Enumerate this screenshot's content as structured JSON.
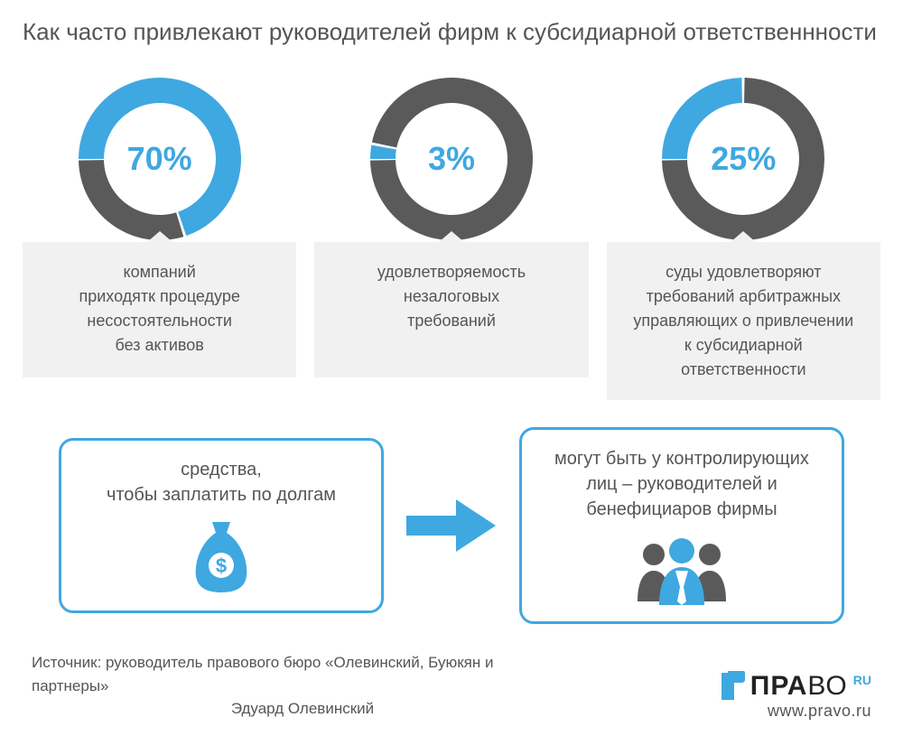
{
  "title": "Как часто привлекают руководителей фирм к субсидиарной ответственнности",
  "colors": {
    "accent": "#3fa8e0",
    "grey": "#5a5a5a",
    "boxBg": "#f1f1f1",
    "textGrey": "#555555",
    "white": "#ffffff"
  },
  "donuts": [
    {
      "percent": 70,
      "label": "70%",
      "desc": "компаний\nприходятк процедуре\nнесостоятельности\nбез активов",
      "ring_width": 28,
      "size": 200,
      "accent_color": "#3fa8e0",
      "grey_color": "#5a5a5a",
      "label_color": "#3fa8e0"
    },
    {
      "percent": 3,
      "label": "3%",
      "desc": "удовлетворяемость\nнезалоговых\nтребований",
      "ring_width": 28,
      "size": 200,
      "accent_color": "#3fa8e0",
      "grey_color": "#5a5a5a",
      "label_color": "#3fa8e0"
    },
    {
      "percent": 25,
      "label": "25%",
      "desc": "суды удовлетворяют\nтребований арбитражных\nуправляющих о привлечении\nк субсидиарной ответственности",
      "ring_width": 28,
      "size": 200,
      "accent_color": "#3fa8e0",
      "grey_color": "#5a5a5a",
      "label_color": "#3fa8e0"
    }
  ],
  "flow": {
    "left": "средства,\nчтобы заплатить по долгам",
    "right": "могут быть у контролирующих\nлиц – руководителей и\nбенефициаров фирмы",
    "arrow_color": "#3fa8e0",
    "border_color": "#3fa8e0",
    "icon_color_primary": "#3fa8e0",
    "icon_color_secondary": "#5a5a5a"
  },
  "source": {
    "line1": "Источник: руководитель правового бюро «Олевинский, Буюкян и партнеры»",
    "line2": "Эдуард Олевинский"
  },
  "logo": {
    "brand_bold": "ПРА",
    "brand_thin": "ВО",
    "ru": "RU",
    "url": "www.pravo.ru",
    "icon_color": "#3fa8e0"
  }
}
